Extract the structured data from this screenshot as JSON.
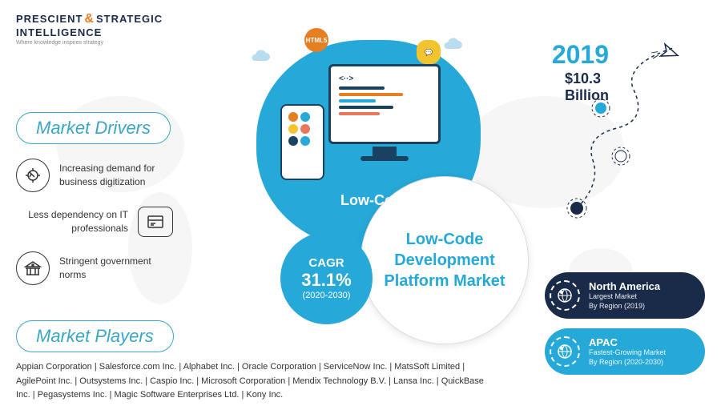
{
  "logo": {
    "line1": "PRESCIENT",
    "amp": "&",
    "line2": "STRATEGIC",
    "line3": "INTELLIGENCE",
    "tagline": "Where knowledge inspires strategy"
  },
  "drivers": {
    "title": "Market Drivers",
    "items": [
      {
        "text": "Increasing demand for business digitization"
      },
      {
        "text": "Less dependency on IT professionals"
      },
      {
        "text": "Stringent government norms"
      }
    ]
  },
  "players": {
    "title": "Market Players",
    "list": "Appian Corporation | Salesforce.com Inc. | Alphabet Inc. | Oracle Corporation | ServiceNow Inc. | MatsSoft Limited | AgilePoint Inc. | Outsystems Inc. | Caspio Inc. | Microsoft Corporation | Mendix Technology B.V. | Lansa Inc. | QuickBase Inc. | Pegasystems Inc. | Magic Software Enterprises Ltd. | Kony Inc."
  },
  "center": {
    "label": "Low-Code",
    "main_title": "Low-Code Development Platform Market",
    "cagr_label": "CAGR",
    "cagr_value": "31.1%",
    "cagr_period": "(2020-2030)"
  },
  "stats": {
    "year": "2019",
    "value": "$10.3",
    "unit": "Billion"
  },
  "regions": [
    {
      "name": "North America",
      "sub": "Largest Market\nBy Region (2019)"
    },
    {
      "name": "APAC",
      "sub": "Fastest-Growing Market\nBy Region (2020-2030)"
    }
  ],
  "badges": {
    "html5": "HTML5",
    "js": "JS"
  },
  "colors": {
    "primary": "#26a9d8",
    "dark": "#1a2b4a",
    "orange": "#e67e22",
    "yellow": "#f4c430",
    "coral": "#e9775e"
  },
  "monitor_lines": [
    {
      "width": "50%",
      "color": "#1a4260"
    },
    {
      "width": "70%",
      "color": "#e67e22"
    },
    {
      "width": "40%",
      "color": "#26a9d8"
    },
    {
      "width": "60%",
      "color": "#1a4260"
    },
    {
      "width": "45%",
      "color": "#e9775e"
    }
  ],
  "phone_dots": [
    "#e67e22",
    "#26a9d8",
    "#f4c430",
    "#e9775e",
    "#1a4260",
    "#26a9d8"
  ]
}
